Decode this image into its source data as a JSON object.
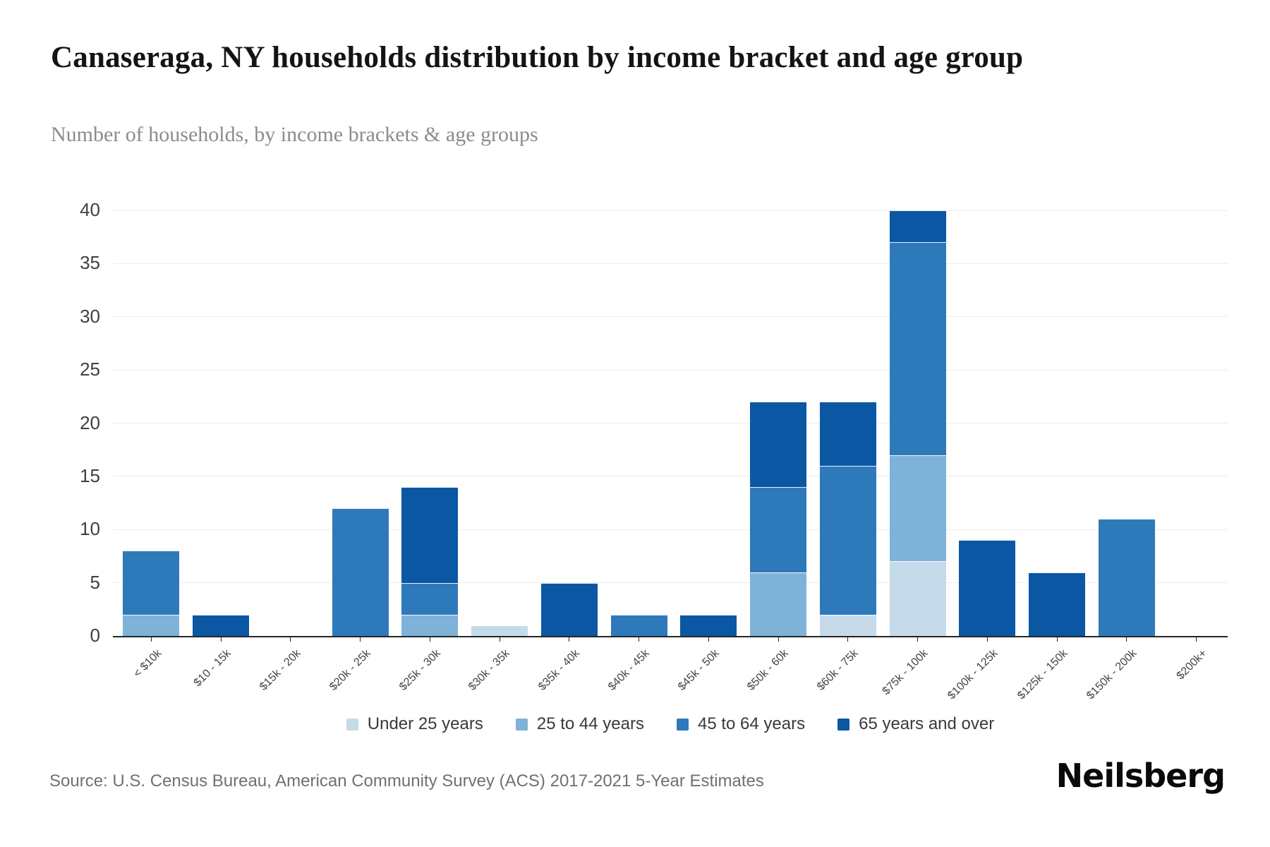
{
  "header": {
    "title": "Canaseraga, NY households distribution by income bracket and age group",
    "subtitle": "Number of households, by income brackets & age groups"
  },
  "footer": {
    "source": "Source: U.S. Census Bureau, American Community Survey (ACS) 2017-2021 5-Year Estimates",
    "brand": "Neilsberg"
  },
  "colors": {
    "axis_line": "#262626",
    "gridline": "#ededed",
    "tick_label": "#404040",
    "title_text": "#141414",
    "subtitle_text": "#8c8c8c"
  },
  "chart_data": {
    "type": "bar",
    "stacked": true,
    "title": "Canaseraga, NY households distribution by income bracket and age group",
    "subtitle": "Number of households, by income brackets & age groups",
    "xlabel": "",
    "ylabel": "",
    "ylim": [
      0,
      40
    ],
    "yticks": [
      0,
      5,
      10,
      15,
      20,
      25,
      30,
      35,
      40
    ],
    "grid": true,
    "legend_position": "bottom",
    "categories": [
      "< $10k",
      "$10 - 15k",
      "$15k - 20k",
      "$20k - 25k",
      "$25k - 30k",
      "$30k - 35k",
      "$35k - 40k",
      "$40k - 45k",
      "$45k - 50k",
      "$50k - 60k",
      "$60k - 75k",
      "$75k - 100k",
      "$100k - 125k",
      "$125k - 150k",
      "$150k - 200k",
      "$200k+"
    ],
    "series": [
      {
        "name": "Under 25 years",
        "color": "#c6dbea",
        "values": [
          0,
          0,
          0,
          0,
          0,
          1,
          0,
          0,
          0,
          0,
          2,
          7,
          0,
          0,
          0,
          0
        ]
      },
      {
        "name": "25 to 44 years",
        "color": "#7fb2d9",
        "values": [
          2,
          0,
          0,
          0,
          2,
          0,
          0,
          0,
          0,
          6,
          0,
          10,
          0,
          0,
          0,
          0
        ]
      },
      {
        "name": "45 to 64 years",
        "color": "#2e79ba",
        "values": [
          6,
          0,
          0,
          12,
          3,
          0,
          0,
          2,
          0,
          8,
          14,
          20,
          0,
          0,
          11,
          0
        ]
      },
      {
        "name": "65 years and over",
        "color": "#0b57a4",
        "values": [
          0,
          2,
          0,
          0,
          9,
          0,
          5,
          0,
          2,
          8,
          6,
          3,
          9,
          6,
          0,
          0
        ]
      }
    ],
    "totals": [
      8,
      2,
      0,
      12,
      14,
      1,
      5,
      2,
      2,
      22,
      22,
      40,
      9,
      6,
      11,
      0
    ]
  }
}
